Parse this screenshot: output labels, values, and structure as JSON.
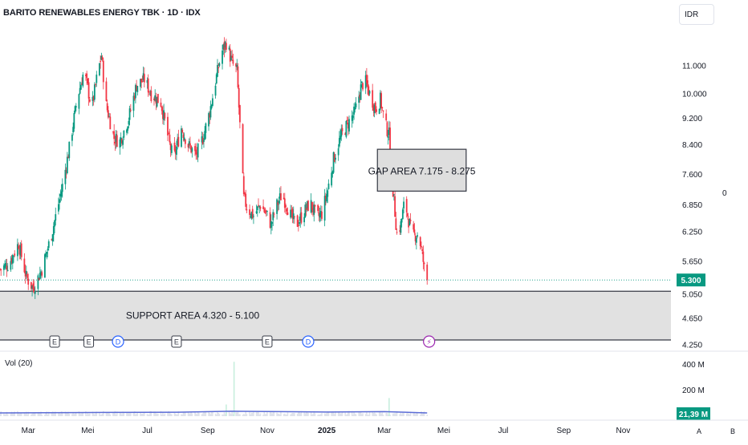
{
  "header": {
    "title": "BARITO RENEWABLES ENERGY TBK · 1D · IDX",
    "currency": "IDR"
  },
  "chart_data": {
    "type": "candlestick",
    "y_scale": "log",
    "ylim": [
      4150,
      13000
    ],
    "y_ticks": [
      "11.000",
      "10.000",
      "9.200",
      "8.400",
      "7.600",
      "6.850",
      "6.250",
      "5.650",
      "5.050",
      "4.650",
      "4.250"
    ],
    "y_tick_values": [
      11000,
      10000,
      9200,
      8400,
      7600,
      6850,
      6250,
      5650,
      5050,
      4650,
      4250
    ],
    "x_ticks": [
      "Mar",
      "Mei",
      "Jul",
      "Sep",
      "Nov",
      "2025",
      "Mar",
      "Mei",
      "Jul",
      "Sep",
      "Nov"
    ],
    "x_tick_dates": [
      "2024-03-01",
      "2024-05-01",
      "2024-07-01",
      "2024-09-01",
      "2024-11-01",
      "2025-01-01",
      "2025-03-01",
      "2025-05-01",
      "2025-07-01",
      "2025-09-01",
      "2025-11-01"
    ],
    "x_range": [
      "2024-02-01",
      "2025-12-20"
    ],
    "last_price": {
      "label": "5.300",
      "value": 5300,
      "color": "#089981"
    },
    "right_marker": "0",
    "price_path": [
      [
        "2024-02-01",
        5500
      ],
      [
        "2024-02-10",
        5600
      ],
      [
        "2024-02-20",
        6000
      ],
      [
        "2024-02-28",
        5350
      ],
      [
        "2024-03-06",
        5150
      ],
      [
        "2024-03-15",
        5500
      ],
      [
        "2024-03-25",
        6200
      ],
      [
        "2024-04-05",
        7300
      ],
      [
        "2024-04-12",
        8300
      ],
      [
        "2024-04-20",
        9800
      ],
      [
        "2024-04-27",
        10800
      ],
      [
        "2024-05-01",
        10200
      ],
      [
        "2024-05-05",
        9500
      ],
      [
        "2024-05-10",
        10500
      ],
      [
        "2024-05-15",
        11400
      ],
      [
        "2024-05-20",
        9600
      ],
      [
        "2024-05-28",
        8600
      ],
      [
        "2024-06-03",
        8500
      ],
      [
        "2024-06-12",
        9200
      ],
      [
        "2024-06-20",
        10300
      ],
      [
        "2024-06-28",
        10500
      ],
      [
        "2024-07-05",
        10000
      ],
      [
        "2024-07-15",
        9700
      ],
      [
        "2024-07-24",
        8400
      ],
      [
        "2024-07-28",
        8000
      ],
      [
        "2024-08-05",
        8900
      ],
      [
        "2024-08-12",
        8400
      ],
      [
        "2024-08-20",
        8100
      ],
      [
        "2024-08-27",
        8600
      ],
      [
        "2024-09-03",
        9400
      ],
      [
        "2024-09-10",
        10600
      ],
      [
        "2024-09-15",
        11500
      ],
      [
        "2024-09-20",
        11900
      ],
      [
        "2024-09-26",
        11100
      ],
      [
        "2024-10-01",
        10800
      ],
      [
        "2024-10-08",
        7000
      ],
      [
        "2024-10-12",
        6750
      ],
      [
        "2024-10-18",
        6600
      ],
      [
        "2024-10-25",
        6850
      ],
      [
        "2024-11-01",
        6600
      ],
      [
        "2024-11-05",
        6400
      ],
      [
        "2024-11-10",
        6800
      ],
      [
        "2024-11-16",
        7100
      ],
      [
        "2024-11-20",
        6900
      ],
      [
        "2024-11-26",
        6550
      ],
      [
        "2024-12-01",
        6400
      ],
      [
        "2024-12-08",
        6650
      ],
      [
        "2024-12-15",
        6900
      ],
      [
        "2024-12-22",
        6550
      ],
      [
        "2024-12-27",
        6650
      ],
      [
        "2025-01-02",
        7200
      ],
      [
        "2025-01-08",
        8000
      ],
      [
        "2025-01-15",
        8600
      ],
      [
        "2025-01-22",
        9000
      ],
      [
        "2025-01-30",
        9400
      ],
      [
        "2025-02-05",
        10200
      ],
      [
        "2025-02-09",
        10500
      ],
      [
        "2025-02-14",
        10000
      ],
      [
        "2025-02-20",
        9500
      ],
      [
        "2025-02-25",
        9800
      ],
      [
        "2025-03-02",
        9000
      ],
      [
        "2025-03-06",
        8700
      ],
      [
        "2025-03-10",
        7200
      ],
      [
        "2025-03-14",
        6200
      ],
      [
        "2025-03-18",
        6400
      ],
      [
        "2025-03-22",
        6950
      ],
      [
        "2025-03-26",
        6500
      ],
      [
        "2025-03-30",
        6150
      ],
      [
        "2025-04-04",
        6200
      ],
      [
        "2025-04-07",
        6000
      ],
      [
        "2025-04-10",
        5650
      ],
      [
        "2025-04-13",
        5250
      ],
      [
        "2025-04-14",
        5300
      ]
    ],
    "annotations": [
      {
        "label": "GAP AREA 7.175 - 8.275",
        "low": 7175,
        "high": 8275,
        "start": "2025-02-22",
        "end": "2025-05-24"
      },
      {
        "label": "SUPPORT AREA 4.320 - 5.100",
        "low": 4320,
        "high": 5100,
        "start": "2024-02-01",
        "end": "2025-12-20"
      }
    ],
    "event_markers": [
      {
        "type": "E",
        "date": "2024-03-28"
      },
      {
        "type": "E",
        "date": "2024-05-02"
      },
      {
        "type": "D",
        "date": "2024-06-01"
      },
      {
        "type": "E",
        "date": "2024-07-31"
      },
      {
        "type": "E",
        "date": "2024-11-01"
      },
      {
        "type": "D",
        "date": "2024-12-13"
      },
      {
        "type": "⚡",
        "date": "2025-04-16"
      }
    ],
    "volume": {
      "label": "Vol (20)",
      "ticks": [
        "400 M",
        "200 M"
      ],
      "tick_values": [
        400,
        200
      ],
      "last_label": "21,39 M",
      "last_color": "#089981",
      "ma_color": "#5b6cd6",
      "bars_color": "#e0e3eb",
      "spikes": [
        {
          "date": "2024-09-28",
          "value": 420
        },
        {
          "date": "2025-03-06",
          "value": 140
        },
        {
          "date": "2024-09-20",
          "value": 90
        }
      ],
      "ma_path": [
        [
          "2024-02-01",
          25
        ],
        [
          "2024-05-01",
          28
        ],
        [
          "2024-08-01",
          30
        ],
        [
          "2024-09-25",
          38
        ],
        [
          "2024-11-01",
          36
        ],
        [
          "2025-01-01",
          32
        ],
        [
          "2025-03-01",
          35
        ],
        [
          "2025-04-14",
          25
        ]
      ]
    },
    "corner_labels": [
      "A",
      "B"
    ]
  }
}
